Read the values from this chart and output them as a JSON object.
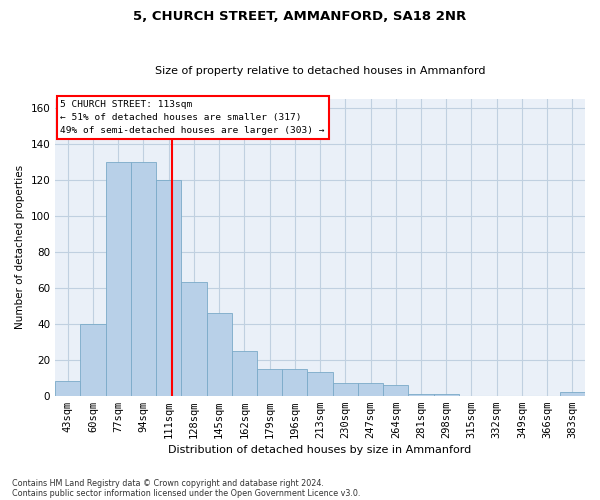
{
  "title": "5, CHURCH STREET, AMMANFORD, SA18 2NR",
  "subtitle": "Size of property relative to detached houses in Ammanford",
  "xlabel": "Distribution of detached houses by size in Ammanford",
  "ylabel": "Number of detached properties",
  "bar_color": "#b8d0e8",
  "bar_edge_color": "#7aaac8",
  "background_color": "#ffffff",
  "plot_bg_color": "#eaf0f8",
  "grid_color": "#c0d0e0",
  "categories": [
    "43sqm",
    "60sqm",
    "77sqm",
    "94sqm",
    "111sqm",
    "128sqm",
    "145sqm",
    "162sqm",
    "179sqm",
    "196sqm",
    "213sqm",
    "230sqm",
    "247sqm",
    "264sqm",
    "281sqm",
    "298sqm",
    "315sqm",
    "332sqm",
    "349sqm",
    "366sqm",
    "383sqm"
  ],
  "values": [
    8,
    40,
    130,
    130,
    120,
    63,
    46,
    25,
    15,
    15,
    13,
    7,
    7,
    6,
    1,
    1,
    0,
    0,
    0,
    0,
    2
  ],
  "ylim": [
    0,
    165
  ],
  "yticks": [
    0,
    20,
    40,
    60,
    80,
    100,
    120,
    140,
    160
  ],
  "property_label": "5 CHURCH STREET: 113sqm",
  "annotation_line1": "← 51% of detached houses are smaller (317)",
  "annotation_line2": "49% of semi-detached houses are larger (303) →",
  "footnote1": "Contains HM Land Registry data © Crown copyright and database right 2024.",
  "footnote2": "Contains public sector information licensed under the Open Government Licence v3.0."
}
